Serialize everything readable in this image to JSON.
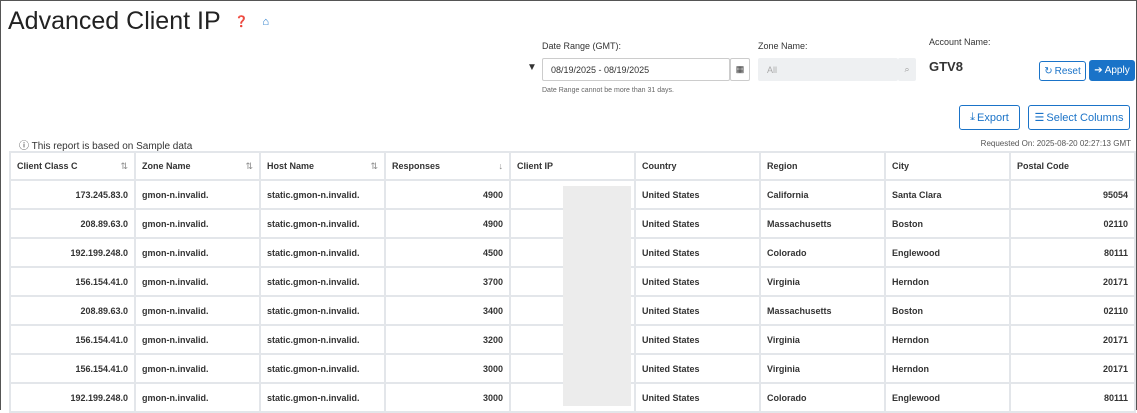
{
  "title": "Advanced Client IP",
  "filters": {
    "date_label": "Date Range (GMT):",
    "date_value": "08/19/2025 - 08/19/2025",
    "date_hint": "Date Range cannot be more than 31 days.",
    "zone_label": "Zone Name:",
    "zone_placeholder": "All",
    "account_label": "Account Name:",
    "account_value": "GTV8",
    "reset": "Reset",
    "apply": "Apply"
  },
  "toolbar": {
    "export": "Export",
    "select_columns": "Select Columns"
  },
  "sample_note": "This report is based on Sample data",
  "requested_on": "Requested On: 2025-08-20 02:27:13 GMT",
  "table": {
    "headers": [
      "Client Class C",
      "Zone Name",
      "Host Name",
      "Responses",
      "Client IP",
      "Country",
      "Region",
      "City",
      "Postal Code"
    ],
    "rows": [
      [
        "173.245.83.0",
        "gmon-n.invalid.",
        "static.gmon-n.invalid.",
        "4900",
        "",
        "United States",
        "California",
        "Santa Clara",
        "95054"
      ],
      [
        "208.89.63.0",
        "gmon-n.invalid.",
        "static.gmon-n.invalid.",
        "4900",
        "",
        "United States",
        "Massachusetts",
        "Boston",
        "02110"
      ],
      [
        "192.199.248.0",
        "gmon-n.invalid.",
        "static.gmon-n.invalid.",
        "4500",
        "",
        "United States",
        "Colorado",
        "Englewood",
        "80111"
      ],
      [
        "156.154.41.0",
        "gmon-n.invalid.",
        "static.gmon-n.invalid.",
        "3700",
        "",
        "United States",
        "Virginia",
        "Herndon",
        "20171"
      ],
      [
        "208.89.63.0",
        "gmon-n.invalid.",
        "static.gmon-n.invalid.",
        "3400",
        "",
        "United States",
        "Massachusetts",
        "Boston",
        "02110"
      ],
      [
        "156.154.41.0",
        "gmon-n.invalid.",
        "static.gmon-n.invalid.",
        "3200",
        "",
        "United States",
        "Virginia",
        "Herndon",
        "20171"
      ],
      [
        "156.154.41.0",
        "gmon-n.invalid.",
        "static.gmon-n.invalid.",
        "3000",
        "",
        "United States",
        "Virginia",
        "Herndon",
        "20171"
      ],
      [
        "192.199.248.0",
        "gmon-n.invalid.",
        "static.gmon-n.invalid.",
        "3000",
        "",
        "United States",
        "Colorado",
        "Englewood",
        "80111"
      ]
    ]
  }
}
